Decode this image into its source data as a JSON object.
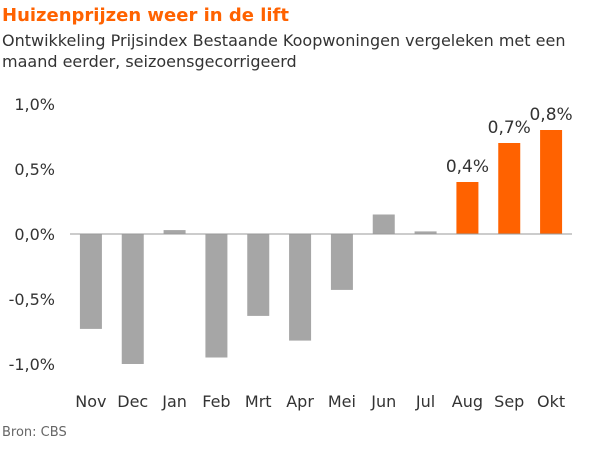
{
  "title": "Huizenprijzen weer in de lift",
  "subtitle": "Ontwikkeling Prijsindex Bestaande Koopwoningen vergeleken met een maand eerder, seizoensgecorrigeerd",
  "source": "Bron: CBS",
  "colors": {
    "neutral": "#a6a6a6",
    "highlight": "#ff6200",
    "label": "#333333",
    "axis": "#999999"
  },
  "chart_data": {
    "type": "bar",
    "categories": [
      "Nov",
      "Dec",
      "Jan",
      "Feb",
      "Mrt",
      "Apr",
      "Mei",
      "Jun",
      "Jul",
      "Aug",
      "Sep",
      "Okt"
    ],
    "values": [
      -0.73,
      -1.0,
      0.03,
      -0.95,
      -0.63,
      -0.82,
      -0.43,
      0.15,
      0.02,
      0.4,
      0.7,
      0.8
    ],
    "data_labels": [
      "",
      "",
      "",
      "",
      "",
      "",
      "",
      "",
      "",
      "0,4%",
      "0,7%",
      "0,8%"
    ],
    "highlighted": [
      false,
      false,
      false,
      false,
      false,
      false,
      false,
      false,
      false,
      true,
      true,
      true
    ],
    "yticks": [
      1.0,
      0.5,
      0.0,
      -0.5,
      -1.0
    ],
    "ytick_labels": [
      "1,0%",
      "0,5%",
      "0,0%",
      "-0,5%",
      "-1,0%"
    ],
    "ylim": [
      -1.0,
      1.0
    ],
    "xlabel": "",
    "ylabel": "",
    "grid": false,
    "legend": "none"
  }
}
